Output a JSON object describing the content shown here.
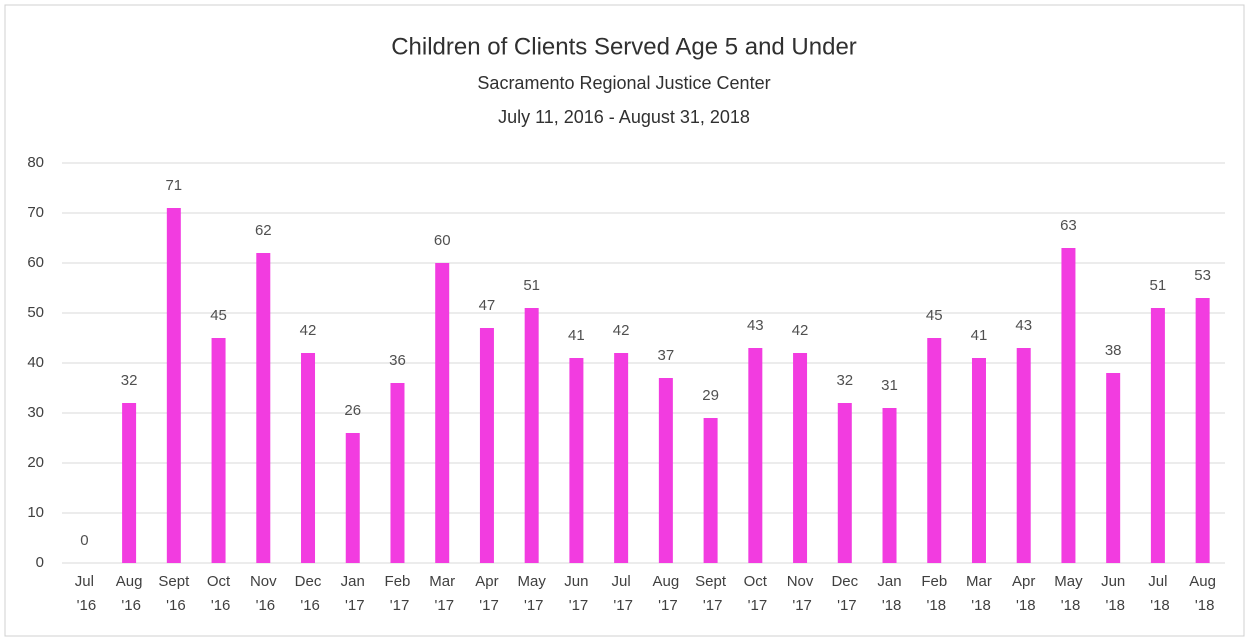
{
  "chart_data": {
    "type": "bar",
    "title": "Children of Clients Served Age 5 and Under",
    "subtitle": "Sacramento Regional Justice Center",
    "date_range": "July 11, 2016 - August 31, 2018",
    "categories": [
      "Jul '16",
      "Aug '16",
      "Sept '16",
      "Oct '16",
      "Nov '16",
      "Dec '16",
      "Jan '17",
      "Feb '17",
      "Mar '17",
      "Apr '17",
      "May '17",
      "Jun '17",
      "Jul '17",
      "Aug '17",
      "Sept '17",
      "Oct '17",
      "Nov '17",
      "Dec '17",
      "Jan '18",
      "Feb '18",
      "Mar '18",
      "Apr '18",
      "May '18",
      "Jun '18",
      "Jul '18",
      "Aug '18"
    ],
    "values": [
      0,
      32,
      71,
      45,
      62,
      42,
      26,
      36,
      60,
      47,
      51,
      41,
      42,
      37,
      29,
      43,
      42,
      32,
      31,
      45,
      41,
      43,
      63,
      38,
      51,
      53
    ],
    "color": "#f23ce0",
    "ylim": [
      0,
      80
    ],
    "yticks": [
      0,
      10,
      20,
      30,
      40,
      50,
      60,
      70,
      80
    ],
    "grid": true
  }
}
